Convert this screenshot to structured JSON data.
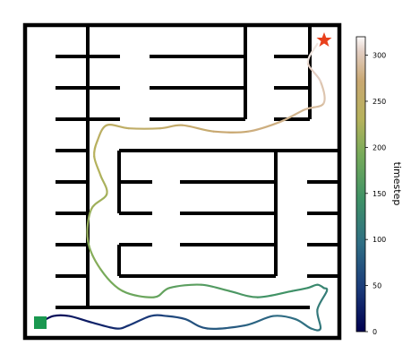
{
  "chart_data": {
    "type": "line",
    "title": "",
    "xlabel": "",
    "ylabel": "",
    "plot_kind": "maze trajectory colored by timestep",
    "grid": false,
    "colormap": "gist_earth",
    "colorbar": {
      "label": "timestep",
      "range": [
        0,
        320
      ],
      "ticks": [
        0,
        50,
        100,
        150,
        200,
        250,
        300
      ],
      "tick_labels": [
        "0",
        "50",
        "100",
        "150",
        "200",
        "250",
        "300"
      ],
      "placement": "right"
    },
    "start_marker": {
      "shape": "square",
      "color": "#1a9850"
    },
    "goal_marker": {
      "shape": "star",
      "color": "#e8401c"
    },
    "trajectory": {
      "x": [
        0.5,
        0.9,
        1.4,
        2.1,
        2.9,
        3.3,
        4.0,
        4.5,
        5.1,
        5.8,
        7.0,
        7.9,
        8.6,
        9.1,
        9.4,
        9.3,
        9.6,
        9.5,
        9.3,
        9.0,
        8.5,
        7.4,
        6.5,
        5.6,
        4.6,
        4.1,
        3.1,
        2.4,
        2.0,
        2.1,
        2.6,
        2.4,
        2.2,
        2.3,
        2.6,
        3.3,
        4.3,
        5.0,
        6.0,
        7.1,
        8.1,
        8.9,
        9.5,
        9.4,
        9.0,
        9.3
      ],
      "y": [
        0.5,
        0.7,
        0.7,
        0.5,
        0.3,
        0.4,
        0.7,
        0.7,
        0.6,
        0.3,
        0.4,
        0.7,
        0.6,
        0.3,
        0.3,
        0.9,
        1.5,
        1.6,
        1.7,
        1.6,
        1.5,
        1.3,
        1.5,
        1.7,
        1.6,
        1.3,
        1.5,
        2.2,
        3.1,
        4.1,
        4.6,
        5.2,
        5.8,
        6.3,
        6.8,
        6.7,
        6.7,
        6.8,
        6.6,
        6.6,
        6.9,
        7.3,
        7.5,
        8.2,
        8.8,
        9.4
      ],
      "t": [
        0,
        8,
        16,
        25,
        34,
        40,
        48,
        56,
        64,
        72,
        82,
        90,
        96,
        102,
        106,
        112,
        118,
        124,
        130,
        136,
        142,
        150,
        158,
        165,
        172,
        178,
        186,
        196,
        206,
        214,
        220,
        226,
        232,
        238,
        244,
        250,
        256,
        262,
        268,
        274,
        280,
        286,
        292,
        300,
        308,
        316
      ]
    },
    "xlim": [
      0,
      10
    ],
    "ylim": [
      0,
      10
    ]
  }
}
